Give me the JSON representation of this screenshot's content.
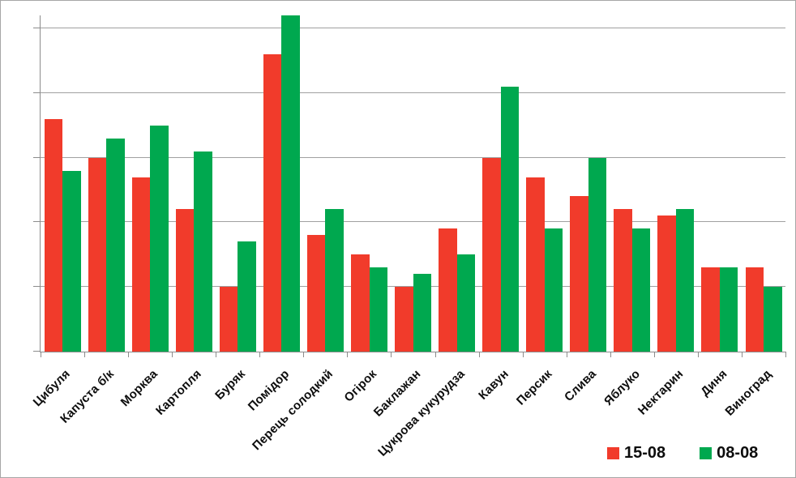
{
  "chart_data": {
    "type": "bar",
    "title": "",
    "xlabel": "",
    "ylabel": "",
    "categories": [
      "Цибуля",
      "Капуста б/к",
      "Морква",
      "Картопля",
      "Буряк",
      "Помідор",
      "Перець солодкий",
      "Огірок",
      "Баклажан",
      "Цукрова кукурудза",
      "Кавун",
      "Персик",
      "Слива",
      "Яблуко",
      "Нектарин",
      "Диня",
      "Виноград"
    ],
    "series": [
      {
        "name": "15-08",
        "color": "#f13b2b",
        "values": [
          36,
          30,
          27,
          22,
          10,
          46,
          18,
          15,
          10,
          19,
          30,
          27,
          24,
          22,
          21,
          13,
          13
        ]
      },
      {
        "name": "08-08",
        "color": "#00a84f",
        "values": [
          28,
          33,
          35,
          31,
          17,
          52,
          22,
          13,
          12,
          15,
          41,
          19,
          30,
          19,
          22,
          13,
          10
        ]
      }
    ],
    "ylim": [
      0,
      52
    ],
    "gridline_step": 10,
    "grid": true,
    "y_axis_tick_labels_visible": false,
    "x_label_rotation_deg": 45,
    "legend_position": "bottom-right"
  },
  "legend": {
    "items": [
      {
        "label": "15-08",
        "color": "#f13b2b"
      },
      {
        "label": "08-08",
        "color": "#00a84f"
      }
    ]
  },
  "colors": {
    "background": "#ffffff",
    "border": "#a6a6a6",
    "axis": "#8c8c8c",
    "gridline": "#a0a0a0",
    "text": "#0d0d0d",
    "series_red": "#f13b2b",
    "series_green": "#00a84f"
  }
}
